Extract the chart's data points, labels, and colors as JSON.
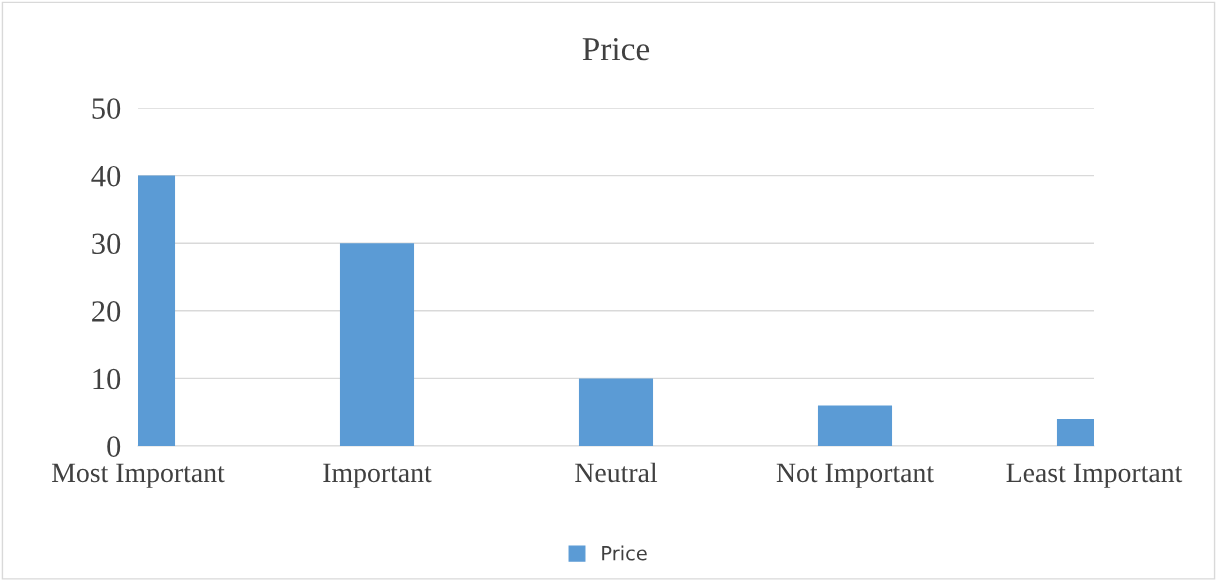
{
  "chart_data": {
    "type": "bar",
    "title": "Price",
    "categories": [
      "Most Important",
      "Important",
      "Neutral",
      "Not Important",
      "Least Important"
    ],
    "series": [
      {
        "name": "Price",
        "color": "#5b9bd5",
        "values": [
          40,
          30,
          10,
          6,
          4
        ]
      }
    ],
    "ylim": [
      0,
      50
    ],
    "yticks": [
      0,
      10,
      20,
      30,
      40,
      50
    ],
    "grid": "y",
    "legend": "bottom"
  }
}
